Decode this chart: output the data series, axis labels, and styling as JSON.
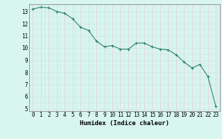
{
  "x": [
    0,
    1,
    2,
    3,
    4,
    5,
    6,
    7,
    8,
    9,
    10,
    11,
    12,
    13,
    14,
    15,
    16,
    17,
    18,
    19,
    20,
    21,
    22,
    23
  ],
  "y": [
    13.2,
    13.35,
    13.3,
    13.0,
    12.85,
    12.4,
    11.7,
    11.45,
    10.55,
    10.1,
    10.2,
    9.9,
    9.9,
    10.4,
    10.4,
    10.1,
    9.9,
    9.85,
    9.45,
    8.85,
    8.35,
    8.65,
    7.65,
    5.2
  ],
  "line_color": "#2e7d6e",
  "marker": "+",
  "marker_color": "#2e7d6e",
  "bg_color": "#d8f5f0",
  "grid_color_major": "#c8e8e0",
  "grid_color_minor": "#daf0ea",
  "grid_color_red": "#f0c8c8",
  "xlabel": "Humidex (Indice chaleur)",
  "ylim": [
    4.8,
    13.6
  ],
  "xlim": [
    -0.5,
    23.5
  ],
  "yticks": [
    5,
    6,
    7,
    8,
    9,
    10,
    11,
    12,
    13
  ],
  "xticks": [
    0,
    1,
    2,
    3,
    4,
    5,
    6,
    7,
    8,
    9,
    10,
    11,
    12,
    13,
    14,
    15,
    16,
    17,
    18,
    19,
    20,
    21,
    22,
    23
  ],
  "tick_fontsize": 5.5,
  "label_fontsize": 6.5
}
